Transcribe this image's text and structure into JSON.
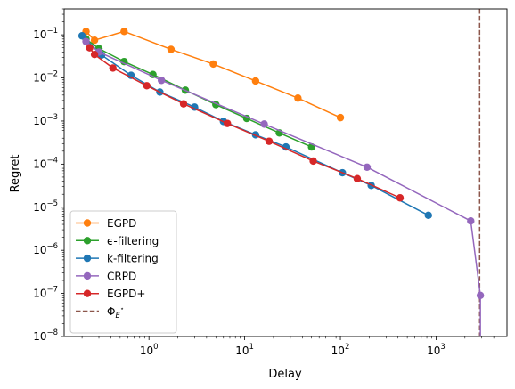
{
  "chart_data": {
    "type": "line",
    "xlabel": "Delay",
    "ylabel": "Regret",
    "xscale": "log",
    "yscale": "log",
    "xlim": [
      0.13,
      5500
    ],
    "ylim": [
      1e-08,
      0.4
    ],
    "grid": false,
    "legend_location": "lower-left",
    "x_ticks": [
      {
        "value": 1,
        "base": "10",
        "exp": "0"
      },
      {
        "value": 10,
        "base": "10",
        "exp": "1"
      },
      {
        "value": 100,
        "base": "10",
        "exp": "2"
      },
      {
        "value": 1000,
        "base": "10",
        "exp": "3"
      }
    ],
    "y_ticks": [
      {
        "value": 1e-08,
        "base": "10",
        "exp": "−8"
      },
      {
        "value": 1e-07,
        "base": "10",
        "exp": "−7"
      },
      {
        "value": 1e-06,
        "base": "10",
        "exp": "−6"
      },
      {
        "value": 1e-05,
        "base": "10",
        "exp": "−5"
      },
      {
        "value": 0.0001,
        "base": "10",
        "exp": "−4"
      },
      {
        "value": 0.001,
        "base": "10",
        "exp": "−3"
      },
      {
        "value": 0.01,
        "base": "10",
        "exp": "−2"
      },
      {
        "value": 0.1,
        "base": "10",
        "exp": "−1"
      }
    ],
    "series": [
      {
        "name": "EGPD",
        "color": "#ff7f0e",
        "points": [
          [
            0.22,
            0.12
          ],
          [
            0.27,
            0.075
          ],
          [
            0.55,
            0.12
          ],
          [
            1.7,
            0.046
          ],
          [
            4.7,
            0.021
          ],
          [
            13,
            0.0085
          ],
          [
            36,
            0.0034
          ],
          [
            100,
            0.0012
          ]
        ]
      },
      {
        "name": "ϵ-filtering",
        "color": "#2ca02c",
        "points": [
          [
            0.22,
            0.08
          ],
          [
            0.3,
            0.048
          ],
          [
            0.55,
            0.024
          ],
          [
            1.1,
            0.012
          ],
          [
            2.4,
            0.0052
          ],
          [
            5,
            0.0024
          ],
          [
            10.5,
            0.00115
          ],
          [
            23,
            0.00053
          ],
          [
            50,
            0.00025
          ]
        ]
      },
      {
        "name": "k-filtering",
        "color": "#1f77b4",
        "points": [
          [
            0.2,
            0.095
          ],
          [
            0.32,
            0.034
          ],
          [
            0.65,
            0.0115
          ],
          [
            1.3,
            0.0047
          ],
          [
            3,
            0.0021
          ],
          [
            6,
            0.00098
          ],
          [
            13,
            0.00048
          ],
          [
            27,
            0.00025
          ],
          [
            105,
            6.3e-05
          ],
          [
            210,
            3.2e-05
          ],
          [
            830,
            6.5e-06
          ]
        ]
      },
      {
        "name": "CRPD",
        "color": "#9467bd",
        "points": [
          [
            0.22,
            0.07
          ],
          [
            0.3,
            0.04
          ],
          [
            1.35,
            0.0088
          ],
          [
            16,
            0.00085
          ],
          [
            190,
            8.5e-05
          ],
          [
            2300,
            4.8e-06
          ],
          [
            2900,
            9e-08
          ],
          [
            2900,
            1e-08
          ]
        ]
      },
      {
        "name": "EGPD+",
        "color": "#d62728",
        "points": [
          [
            0.24,
            0.05
          ],
          [
            0.27,
            0.035
          ],
          [
            0.42,
            0.017
          ],
          [
            0.95,
            0.0066
          ],
          [
            2.3,
            0.0025
          ],
          [
            6.6,
            0.00088
          ],
          [
            18,
            0.00034
          ],
          [
            52,
            0.000118
          ],
          [
            150,
            4.6e-05
          ],
          [
            420,
            1.65e-05
          ]
        ]
      }
    ],
    "vline": {
      "name": "Φ_{E*}",
      "x": 2850,
      "color": "#8c564b"
    },
    "legend": [
      {
        "label": "EGPD",
        "kind": "series",
        "color": "#ff7f0e"
      },
      {
        "label": "ϵ-filtering",
        "kind": "series",
        "color": "#2ca02c"
      },
      {
        "label": "k-filtering",
        "kind": "series",
        "color": "#1f77b4"
      },
      {
        "label": "CRPD",
        "kind": "series",
        "color": "#9467bd"
      },
      {
        "label": "EGPD+",
        "kind": "series",
        "color": "#d62728"
      },
      {
        "label": "Φ",
        "sub": "E",
        "sup": "⋆",
        "kind": "vline",
        "color": "#8c564b"
      }
    ]
  }
}
